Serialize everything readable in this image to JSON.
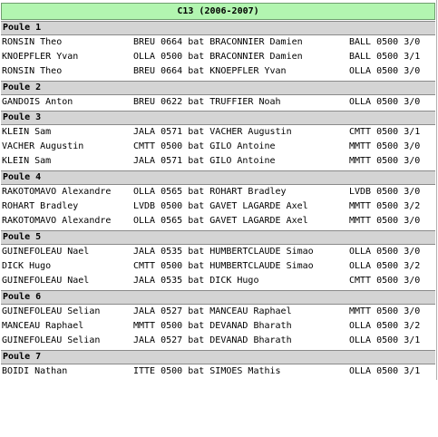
{
  "title": "C13 (2006-2007)",
  "poules": [
    {
      "name": "Poule 1",
      "matches": [
        {
          "player": "RONSIN Theo",
          "result": "BREU 0664 bat BRACONNIER Damien",
          "opponent": "BALL 0500 3/0"
        },
        {
          "player": "KNOEPFLER Yvan",
          "result": "OLLA 0500 bat BRACONNIER Damien",
          "opponent": "BALL 0500 3/1"
        },
        {
          "player": "RONSIN Theo",
          "result": "BREU 0664 bat KNOEPFLER Yvan",
          "opponent": "OLLA 0500 3/0"
        }
      ]
    },
    {
      "name": "Poule 2",
      "matches": [
        {
          "player": "GANDOIS Anton",
          "result": "BREU 0622 bat TRUFFIER Noah",
          "opponent": "OLLA 0500 3/0"
        }
      ]
    },
    {
      "name": "Poule 3",
      "matches": [
        {
          "player": "KLEIN Sam",
          "result": "JALA 0571 bat VACHER Augustin",
          "opponent": "CMTT 0500 3/1"
        },
        {
          "player": "VACHER Augustin",
          "result": "CMTT 0500 bat GILO Antoine",
          "opponent": "MMTT 0500 3/0"
        },
        {
          "player": "KLEIN Sam",
          "result": "JALA 0571 bat GILO Antoine",
          "opponent": "MMTT 0500 3/0"
        }
      ]
    },
    {
      "name": "Poule 4",
      "matches": [
        {
          "player": "RAKOTOMAVO Alexandre",
          "result": "OLLA 0565 bat ROHART Bradley",
          "opponent": "LVDB 0500 3/0"
        },
        {
          "player": "ROHART Bradley",
          "result": "LVDB 0500 bat GAVET LAGARDE Axel",
          "opponent": "MMTT 0500 3/2"
        },
        {
          "player": "RAKOTOMAVO Alexandre",
          "result": "OLLA 0565 bat GAVET LAGARDE Axel",
          "opponent": "MMTT 0500 3/0"
        }
      ]
    },
    {
      "name": "Poule 5",
      "matches": [
        {
          "player": "GUINEFOLEAU Nael",
          "result": "JALA 0535 bat HUMBERTCLAUDE Simao",
          "opponent": "OLLA 0500 3/0"
        },
        {
          "player": "DICK Hugo",
          "result": "CMTT 0500 bat HUMBERTCLAUDE Simao",
          "opponent": "OLLA 0500 3/2"
        },
        {
          "player": "GUINEFOLEAU Nael",
          "result": "JALA 0535 bat DICK Hugo",
          "opponent": "CMTT 0500 3/0"
        }
      ]
    },
    {
      "name": "Poule 6",
      "matches": [
        {
          "player": "GUINEFOLEAU Selian",
          "result": "JALA 0527 bat MANCEAU Raphael",
          "opponent": "MMTT 0500 3/0"
        },
        {
          "player": "MANCEAU Raphael",
          "result": "MMTT 0500 bat DEVANAD Bharath",
          "opponent": "OLLA 0500 3/2"
        },
        {
          "player": "GUINEFOLEAU Selian",
          "result": "JALA 0527 bat DEVANAD Bharath",
          "opponent": "OLLA 0500 3/1"
        }
      ]
    },
    {
      "name": "Poule 7",
      "matches": [
        {
          "player": "BOIDI Nathan",
          "result": "ITTE 0500 bat SIMOES Mathis",
          "opponent": "OLLA 0500 3/1"
        }
      ]
    }
  ]
}
